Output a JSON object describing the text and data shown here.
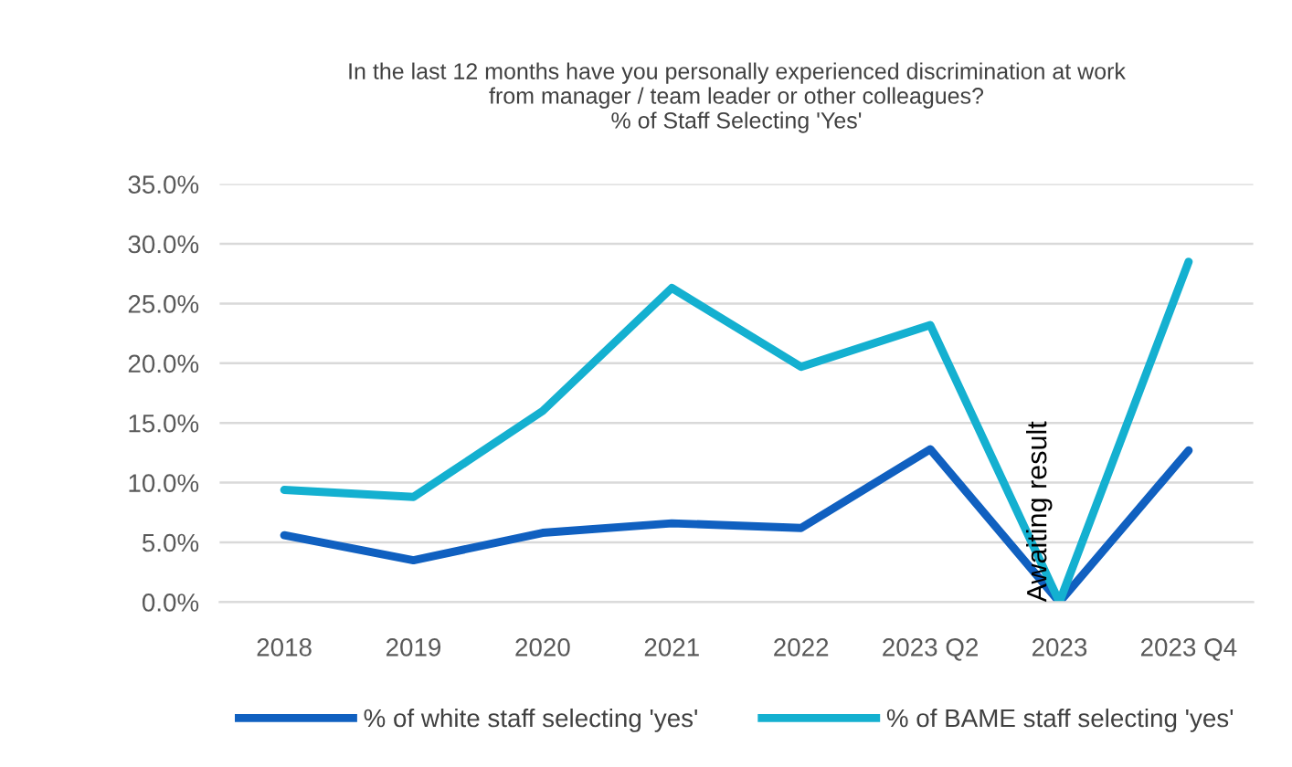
{
  "chart_data": {
    "type": "line",
    "title": "In the last 12 months have you personally experienced discrimination at work\nfrom manager / team leader or other colleagues?\n% of Staff Selecting 'Yes'",
    "categories": [
      "2018",
      "2019",
      "2020",
      "2021",
      "2022",
      "2023 Q2",
      "2023",
      "2023 Q4"
    ],
    "series": [
      {
        "name": "% of white staff selecting 'yes'",
        "color": "#1060c0",
        "values": [
          5.6,
          3.5,
          5.8,
          6.6,
          6.2,
          12.8,
          0,
          12.7
        ]
      },
      {
        "name": "% of BAME staff selecting 'yes'",
        "color": "#14b0d0",
        "values": [
          9.4,
          8.8,
          16.0,
          26.3,
          19.7,
          23.2,
          0,
          28.5
        ]
      }
    ],
    "ylim": [
      0,
      35
    ],
    "yticks": [
      {
        "value": 0,
        "label": "0.0%"
      },
      {
        "value": 5,
        "label": "5.0%"
      },
      {
        "value": 10,
        "label": "10.0%"
      },
      {
        "value": 15,
        "label": "15.0%"
      },
      {
        "value": 20,
        "label": "20.0%"
      },
      {
        "value": 25,
        "label": "25.0%"
      },
      {
        "value": 30,
        "label": "30.0%"
      },
      {
        "value": 35,
        "label": "35.0%"
      }
    ],
    "annotations": [
      {
        "text": "Awaiting result",
        "x": "2023",
        "y": 0
      }
    ],
    "grid": "y",
    "legend": "bottom",
    "marker": "none",
    "line_style": "solid"
  }
}
